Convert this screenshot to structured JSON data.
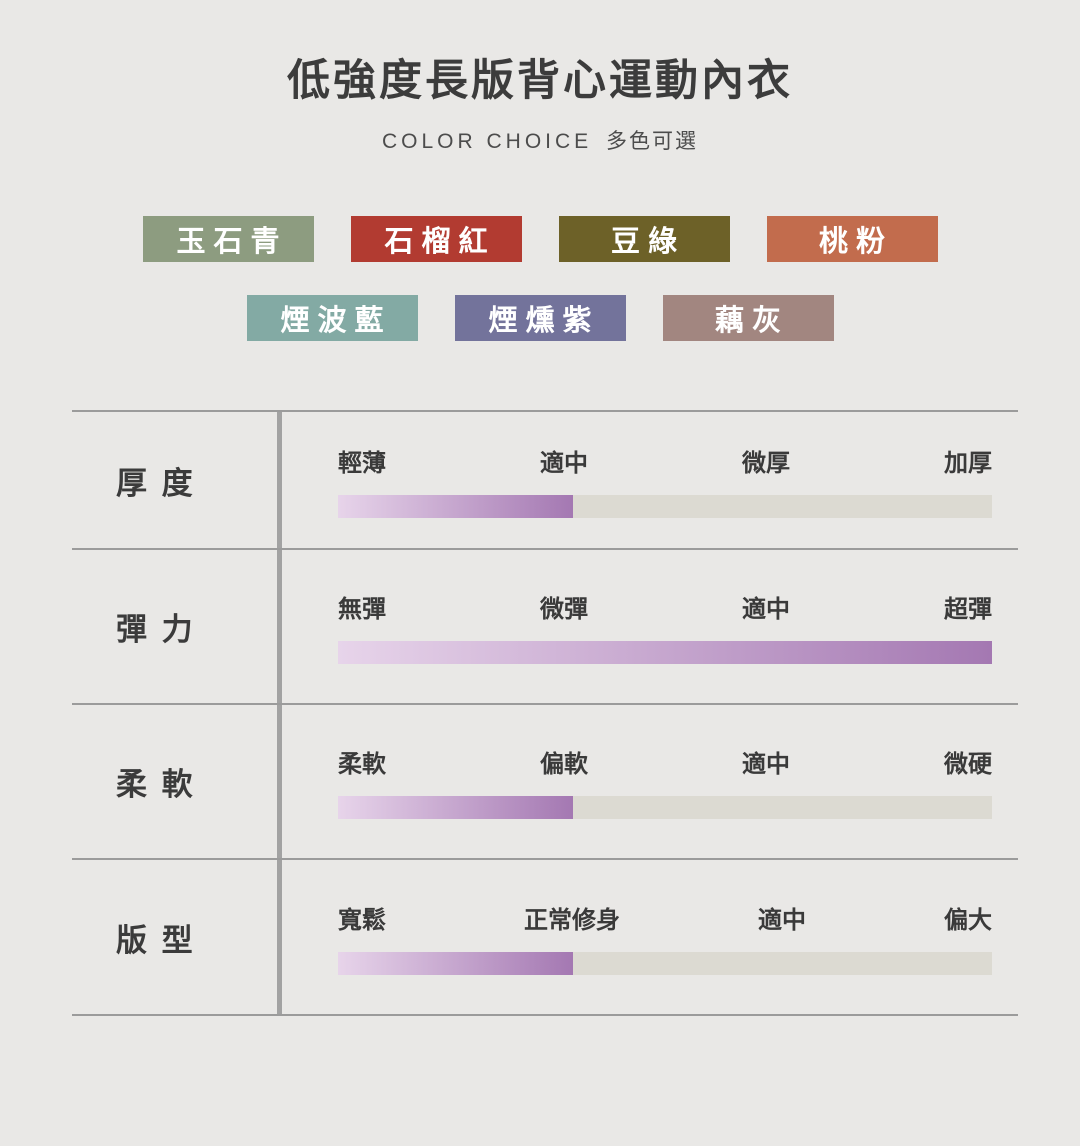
{
  "page": {
    "title": "低強度長版背心運動內衣",
    "subtitle_en": "COLOR CHOICE",
    "subtitle_zh": "多色可選"
  },
  "color_rows": [
    [
      {
        "label": "玉石青",
        "hex": "#8d9c80"
      },
      {
        "label": "石榴紅",
        "hex": "#b23b31"
      },
      {
        "label": "豆綠",
        "hex": "#6d6128"
      },
      {
        "label": "桃粉",
        "hex": "#c26c4d"
      }
    ],
    [
      {
        "label": "煙波藍",
        "hex": "#83aaa4"
      },
      {
        "label": "煙燻紫",
        "hex": "#73739b"
      },
      {
        "label": "藕灰",
        "hex": "#a28680"
      }
    ]
  ],
  "attributes": [
    {
      "name": "厚 度",
      "scale": [
        "輕薄",
        "適中",
        "微厚",
        "加厚"
      ],
      "fill_percent": 36
    },
    {
      "name": "彈 力",
      "scale": [
        "無彈",
        "微彈",
        "適中",
        "超彈"
      ],
      "fill_percent": 100
    },
    {
      "name": "柔 軟",
      "scale": [
        "柔軟",
        "偏軟",
        "適中",
        "微硬"
      ],
      "fill_percent": 36
    },
    {
      "name": "版 型",
      "scale": [
        "寬鬆",
        "正常修身",
        "適中",
        "偏大"
      ],
      "fill_percent": 36
    }
  ],
  "theme": {
    "background": "#e9e8e6",
    "title_color": "#3c3c3c",
    "line_color": "#9b9b9b",
    "divider_color": "#a2a2a2",
    "track_color": "#dcdad2",
    "bar_gradient_start": "#e7d4ea",
    "bar_gradient_end": "#a478b2",
    "swatch_text_color": "#ffffff"
  },
  "chart_data": {
    "type": "bar",
    "title": "低強度長版背心運動內衣",
    "subtitle": "COLOR CHOICE 多色可選",
    "color_options": [
      {
        "name": "玉石青",
        "hex": "#8d9c80"
      },
      {
        "name": "石榴紅",
        "hex": "#b23b31"
      },
      {
        "name": "豆綠",
        "hex": "#6d6128"
      },
      {
        "name": "桃粉",
        "hex": "#c26c4d"
      },
      {
        "name": "煙波藍",
        "hex": "#83aaa4"
      },
      {
        "name": "煙燻紫",
        "hex": "#73739b"
      },
      {
        "name": "藕灰",
        "hex": "#a28680"
      }
    ],
    "ratings": [
      {
        "attribute": "厚度",
        "scale_labels": [
          "輕薄",
          "適中",
          "微厚",
          "加厚"
        ],
        "value_percent": 36
      },
      {
        "attribute": "彈力",
        "scale_labels": [
          "無彈",
          "微彈",
          "適中",
          "超彈"
        ],
        "value_percent": 100
      },
      {
        "attribute": "柔軟",
        "scale_labels": [
          "柔軟",
          "偏軟",
          "適中",
          "微硬"
        ],
        "value_percent": 36
      },
      {
        "attribute": "版型",
        "scale_labels": [
          "寬鬆",
          "正常修身",
          "適中",
          "偏大"
        ],
        "value_percent": 36
      }
    ],
    "legend_position": "none",
    "grid": false
  }
}
